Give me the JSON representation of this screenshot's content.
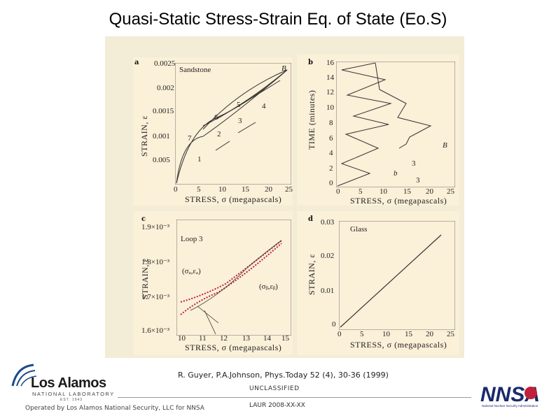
{
  "slide": {
    "title": "Quasi-Static Stress-Strain Eq. of State (Eo.S)",
    "citation": "R. Guyer, P.A.Johnson, Phys.Today 52 (4), 30-36 (1999)",
    "classification": "UNCLASSIFIED",
    "footer_left": "Operated by Los Alamos National Security, LLC for NNSA",
    "footer_mid": "LAUR 2008-XX-XX"
  },
  "logos": {
    "lanl": {
      "main": "Los Alamos",
      "sub": "NATIONAL LABORATORY",
      "est": "EST. 1943"
    },
    "nnsa": {
      "main": "NNSA",
      "sub": "National Nuclear Security Administration"
    }
  },
  "colors": {
    "background": "#ffffff",
    "figure_bg": "#fbf0d8",
    "data_red": "#c0203a",
    "line": "#333333"
  },
  "panels": {
    "a": {
      "letter": "a",
      "label": "Sandstone",
      "ylabel": "STRAIN, ε",
      "xlabel": "STRESS, σ (megapascals)",
      "xticks": [
        "0",
        "5",
        "10",
        "15",
        "20",
        "25"
      ],
      "yticks": [
        "0.0025",
        "0.002",
        "0.0015",
        "0.001",
        "0.005"
      ],
      "loop_numbers": [
        "1",
        "2",
        "3",
        "4",
        "5",
        "6",
        "7"
      ],
      "endpoint": "B"
    },
    "b": {
      "letter": "b",
      "ylabel": "TIME (minutes)",
      "xlabel": "STRESS, σ (megapascals)",
      "xticks": [
        "0",
        "5",
        "10",
        "15",
        "20",
        "25"
      ],
      "yticks": [
        "16",
        "14",
        "12",
        "10",
        "8",
        "6",
        "4",
        "2",
        "0"
      ],
      "tag_b": "b",
      "tag_3a": "3",
      "tag_3b": "3",
      "endpoint": "B"
    },
    "c": {
      "letter": "c",
      "label": "Loop 3",
      "ylabel": "STRAIN, ε",
      "xlabel": "STRESS, σ (megapascals)",
      "xticks": [
        "10",
        "11",
        "12",
        "13",
        "14",
        "15"
      ],
      "yticks": [
        "1.9×10⁻³",
        "1.8×10⁻³",
        "1.7×10⁻³",
        "1.6×10⁻³"
      ],
      "point_a": "(σₐ,εₐ)",
      "point_b": "(σᵦ,εᵦ)"
    },
    "d": {
      "letter": "d",
      "label": "Glass",
      "ylabel": "STRAIN, ε",
      "xlabel": "STRESS, σ (megapascals)",
      "xticks": [
        "0",
        "5",
        "10",
        "15",
        "20",
        "25"
      ],
      "yticks": [
        "0.03",
        "0.02",
        "0.01",
        "0"
      ]
    }
  }
}
